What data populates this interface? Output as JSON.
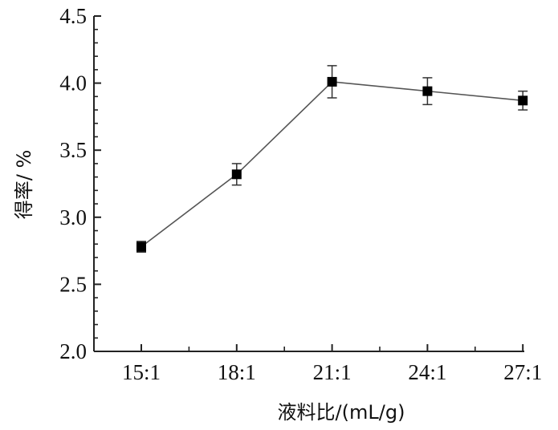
{
  "chart_data": {
    "type": "line",
    "categories": [
      "15:1",
      "18:1",
      "21:1",
      "24:1",
      "27:1"
    ],
    "series": [
      {
        "values": [
          2.78,
          3.32,
          4.01,
          3.94,
          3.87
        ],
        "errors": [
          0.04,
          0.08,
          0.12,
          0.1,
          0.07
        ]
      }
    ],
    "xlabel": "液料比/(mL/g)",
    "ylabel": "得率/ %",
    "ylim": [
      2.0,
      4.5
    ],
    "yticks": [
      "2.0",
      "2.5",
      "3.0",
      "3.5",
      "4.0",
      "4.5"
    ],
    "grid": false,
    "marker": "square",
    "line_color": "#555555",
    "marker_color": "#000000"
  }
}
